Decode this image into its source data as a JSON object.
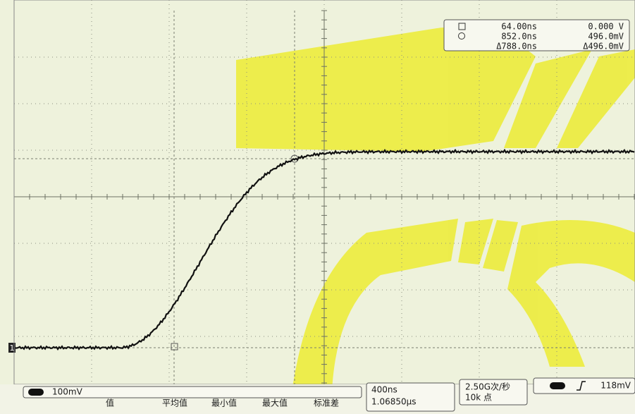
{
  "cursor_readout": {
    "x1": "64.00ns",
    "x2": "852.0ns",
    "dx": "Δ788.0ns",
    "y1": "0.000 V",
    "y2": "496.0mV",
    "dy": "Δ496.0mV"
  },
  "channel_marker": "1",
  "status_bar": {
    "channel_scale": "100mV",
    "timebase": "400ns",
    "delay": "1.06850μs",
    "sample_rate": "2.50G次/秒",
    "record_length": "10k 点",
    "trigger_level": "118mV"
  },
  "measurement_headers": [
    "值",
    "平均值",
    "最小值",
    "最大值",
    "标准差"
  ]
}
